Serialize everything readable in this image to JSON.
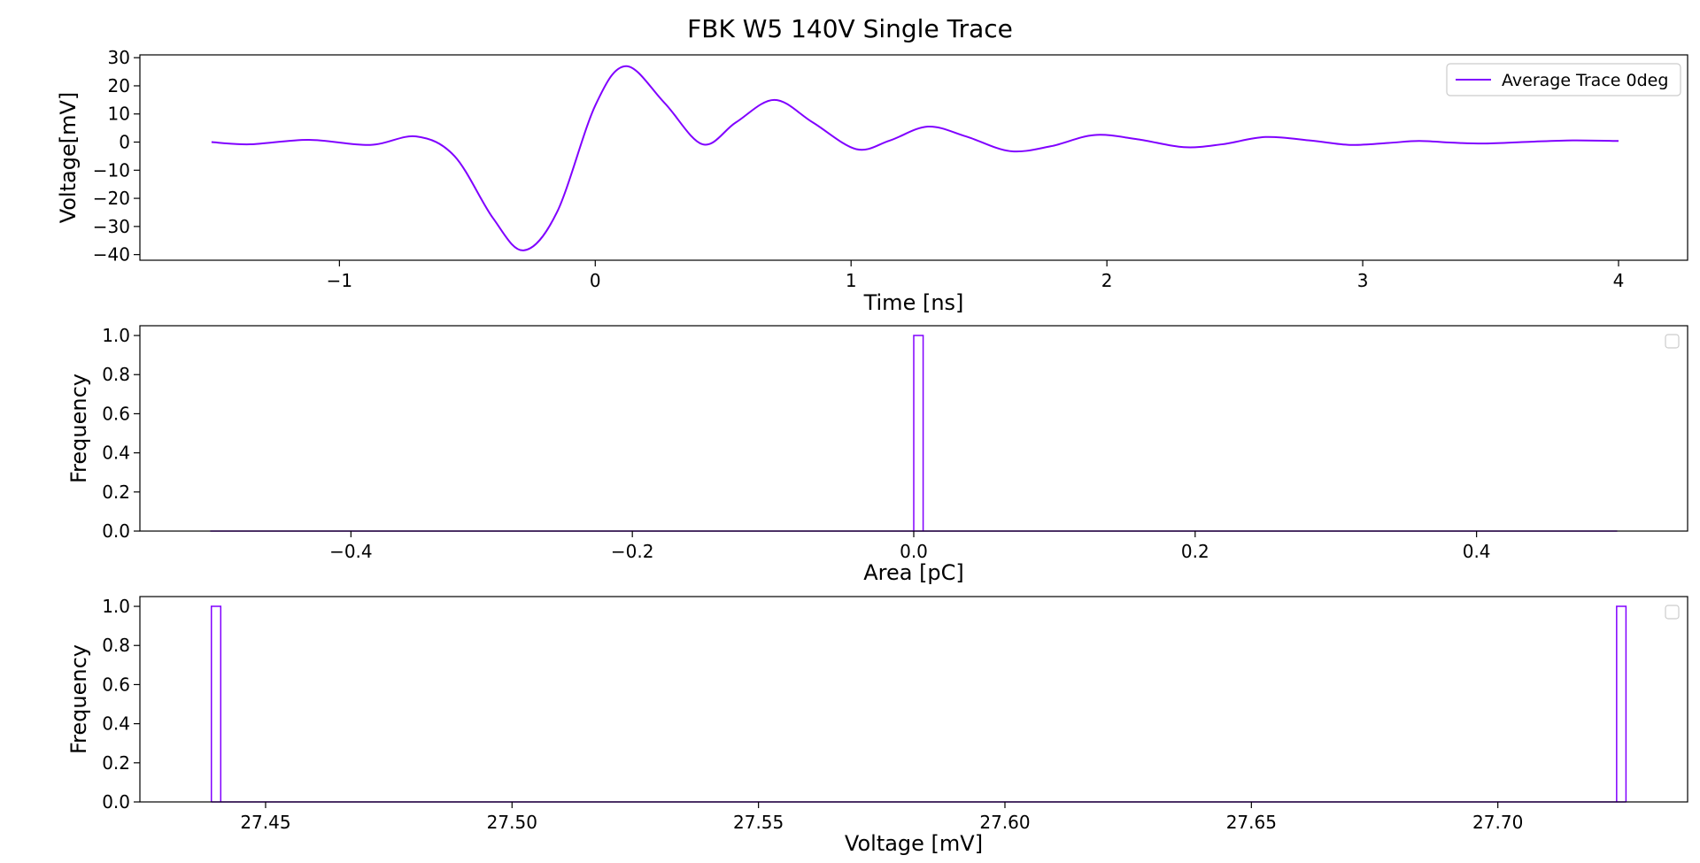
{
  "figure": {
    "title": "FBK W5 140V Single Trace",
    "colors": {
      "series": "#8000ff",
      "frame": "#000000",
      "legend_border": "#cccccc"
    }
  },
  "chart_data": [
    {
      "type": "line",
      "title": "",
      "xlabel": "Time [ns]",
      "ylabel": "Voltage[mV]",
      "xlim": [
        -1.78,
        4.27
      ],
      "ylim": [
        -42,
        31
      ],
      "x_ticks": [
        -1,
        0,
        1,
        2,
        3,
        4
      ],
      "x_tick_labels": [
        "−1",
        "0",
        "1",
        "2",
        "3",
        "4"
      ],
      "y_ticks": [
        30,
        20,
        10,
        0,
        -10,
        -20,
        -30,
        -40
      ],
      "y_tick_labels": [
        "30",
        "20",
        "10",
        "0",
        "−10",
        "−20",
        "−30",
        "−40"
      ],
      "grid": false,
      "legend": {
        "placement": "top-right",
        "entries": [
          "Average Trace 0deg"
        ]
      },
      "series": [
        {
          "name": "Average Trace 0deg",
          "x": [
            -1.5,
            -1.35,
            -1.12,
            -0.88,
            -0.7,
            -0.55,
            -0.4,
            -0.28,
            -0.15,
            0.0,
            0.12,
            0.27,
            0.42,
            0.55,
            0.7,
            0.85,
            1.02,
            1.15,
            1.3,
            1.45,
            1.62,
            1.78,
            1.95,
            2.12,
            2.3,
            2.45,
            2.62,
            2.8,
            2.95,
            3.1,
            3.22,
            3.35,
            3.48,
            3.65,
            3.82,
            4.0
          ],
          "y": [
            0.0,
            -0.8,
            0.8,
            -1.0,
            2.0,
            -5.0,
            -27.0,
            -38.5,
            -25.0,
            13.0,
            27.0,
            14.0,
            -0.8,
            7.0,
            15.0,
            7.0,
            -2.5,
            0.5,
            5.5,
            2.0,
            -3.2,
            -1.5,
            2.5,
            1.0,
            -1.8,
            -0.8,
            1.8,
            0.5,
            -1.0,
            -0.3,
            0.4,
            -0.2,
            -0.5,
            0.1,
            0.6,
            0.4
          ]
        }
      ]
    },
    {
      "type": "bar",
      "title": "",
      "xlabel": "Area [pC]",
      "ylabel": "Frequency",
      "xlim": [
        -0.55,
        0.55
      ],
      "ylim": [
        0,
        1.05
      ],
      "x_ticks": [
        -0.4,
        -0.2,
        0.0,
        0.2,
        0.4
      ],
      "x_tick_labels": [
        "−0.4",
        "−0.2",
        "0.0",
        "0.2",
        "0.4"
      ],
      "y_ticks": [
        0.0,
        0.2,
        0.4,
        0.6,
        0.8,
        1.0
      ],
      "y_tick_labels": [
        "0.0",
        "0.2",
        "0.4",
        "0.6",
        "0.8",
        "1.0"
      ],
      "grid": false,
      "legend": {
        "placement": "top-right",
        "entries": []
      },
      "histogram": {
        "range": [
          -0.5,
          0.5
        ],
        "bin_width": 0.00667,
        "bins": [
          {
            "left": 0.0,
            "right": 0.00667,
            "count": 1
          }
        ]
      }
    },
    {
      "type": "bar",
      "title": "",
      "xlabel": "Voltage [mV]",
      "ylabel": "Frequency",
      "xlim": [
        27.4245,
        27.7385
      ],
      "ylim": [
        0,
        1.05
      ],
      "x_ticks": [
        27.45,
        27.5,
        27.55,
        27.6,
        27.65,
        27.7
      ],
      "x_tick_labels": [
        "27.45",
        "27.50",
        "27.55",
        "27.60",
        "27.65",
        "27.70"
      ],
      "y_ticks": [
        0.0,
        0.2,
        0.4,
        0.6,
        0.8,
        1.0
      ],
      "y_tick_labels": [
        "0.0",
        "0.2",
        "0.4",
        "0.6",
        "0.8",
        "1.0"
      ],
      "grid": false,
      "legend": {
        "placement": "top-right",
        "entries": []
      },
      "histogram": {
        "range": [
          27.439,
          27.726
        ],
        "bin_width": 0.0019,
        "bins": [
          {
            "left": 27.439,
            "right": 27.4409,
            "count": 1
          },
          {
            "left": 27.7241,
            "right": 27.726,
            "count": 1
          }
        ]
      }
    }
  ]
}
